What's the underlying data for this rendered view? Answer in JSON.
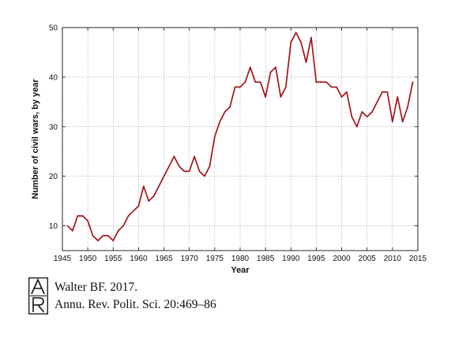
{
  "chart_data": {
    "type": "line",
    "title": "",
    "xlabel": "Year",
    "ylabel": "Number of civil wars, by year",
    "xlim": [
      1945,
      2015
    ],
    "ylim": [
      5,
      50
    ],
    "xticks": [
      1945,
      1950,
      1955,
      1960,
      1965,
      1970,
      1975,
      1980,
      1985,
      1990,
      1995,
      2000,
      2005,
      2010,
      2015
    ],
    "yticks": [
      10,
      20,
      30,
      40,
      50
    ],
    "grid": true,
    "legend": "none",
    "series": [
      {
        "color": "#a3141c",
        "x": [
          1946,
          1947,
          1948,
          1949,
          1950,
          1951,
          1952,
          1953,
          1954,
          1955,
          1956,
          1957,
          1958,
          1959,
          1960,
          1961,
          1962,
          1963,
          1964,
          1965,
          1966,
          1967,
          1968,
          1969,
          1970,
          1971,
          1972,
          1973,
          1974,
          1975,
          1976,
          1977,
          1978,
          1979,
          1980,
          1981,
          1982,
          1983,
          1984,
          1985,
          1986,
          1987,
          1988,
          1989,
          1990,
          1991,
          1992,
          1993,
          1994,
          1995,
          1996,
          1997,
          1998,
          1999,
          2000,
          2001,
          2002,
          2003,
          2004,
          2005,
          2006,
          2007,
          2008,
          2009,
          2010,
          2011,
          2012,
          2013,
          2014
        ],
        "values": [
          10,
          9,
          12,
          12,
          11,
          8,
          7,
          8,
          8,
          7,
          9,
          10,
          12,
          13,
          14,
          18,
          15,
          16,
          18,
          20,
          22,
          24,
          22,
          21,
          21,
          24,
          21,
          20,
          22,
          28,
          31,
          33,
          34,
          38,
          38,
          39,
          42,
          39,
          39,
          36,
          41,
          42,
          36,
          38,
          47,
          49,
          47,
          43,
          48,
          39,
          39,
          39,
          38,
          38,
          36,
          37,
          32,
          30,
          33,
          32,
          33,
          35,
          37,
          37,
          31,
          36,
          31,
          34,
          39
        ]
      }
    ]
  },
  "citation": {
    "logo_letters": "AR",
    "line1": "Walter BF. 2017.",
    "line2": "Annu. Rev. Polit. Sci. 20:469–86"
  }
}
